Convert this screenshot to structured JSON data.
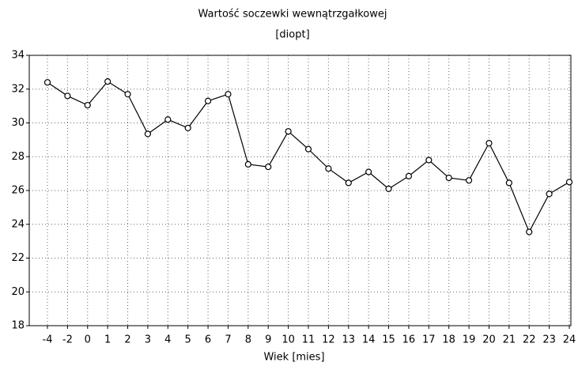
{
  "chart_data": {
    "type": "line",
    "title": "Wartość soczewki wewnątrzgałkowej",
    "subtitle": "[diopt]",
    "x_label": "Wiek [mies]",
    "categories": [
      "-4",
      "-2",
      "0",
      "1",
      "2",
      "3",
      "4",
      "5",
      "6",
      "7",
      "8",
      "9",
      "10",
      "11",
      "12",
      "13",
      "14",
      "15",
      "16",
      "17",
      "18",
      "19",
      "20",
      "21",
      "22",
      "23",
      "24"
    ],
    "values": [
      32.4,
      31.6,
      31.05,
      32.45,
      31.7,
      29.35,
      30.2,
      29.7,
      31.3,
      31.7,
      27.55,
      27.4,
      29.5,
      28.45,
      27.3,
      26.45,
      27.1,
      26.1,
      26.85,
      27.8,
      26.75,
      26.6,
      28.8,
      26.45,
      23.55,
      25.8,
      26.5
    ],
    "color": "#000000",
    "ylim": [
      18,
      34
    ],
    "yticks": [
      18,
      20,
      22,
      24,
      26,
      28,
      30,
      32,
      34
    ],
    "grid": true
  }
}
